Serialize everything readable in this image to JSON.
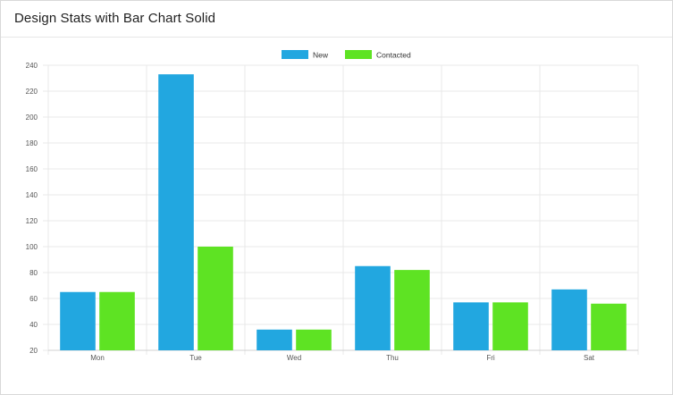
{
  "card": {
    "title": "Design Stats with Bar Chart Solid"
  },
  "colors": {
    "new": "#22a7e0",
    "contacted": "#5ee323",
    "grid": "#e8e8e8",
    "axis_text": "#555555"
  },
  "chart_data": {
    "type": "bar",
    "categories": [
      "Mon",
      "Tue",
      "Wed",
      "Thu",
      "Fri",
      "Sat"
    ],
    "series": [
      {
        "name": "New",
        "values": [
          65,
          233,
          36,
          85,
          57,
          67
        ]
      },
      {
        "name": "Contacted",
        "values": [
          65,
          100,
          36,
          82,
          57,
          56
        ]
      }
    ],
    "yticks": [
      20,
      40,
      60,
      80,
      100,
      120,
      140,
      160,
      180,
      200,
      220,
      240
    ],
    "ylim": [
      20,
      240
    ],
    "grid": true,
    "legend": "top-center"
  }
}
